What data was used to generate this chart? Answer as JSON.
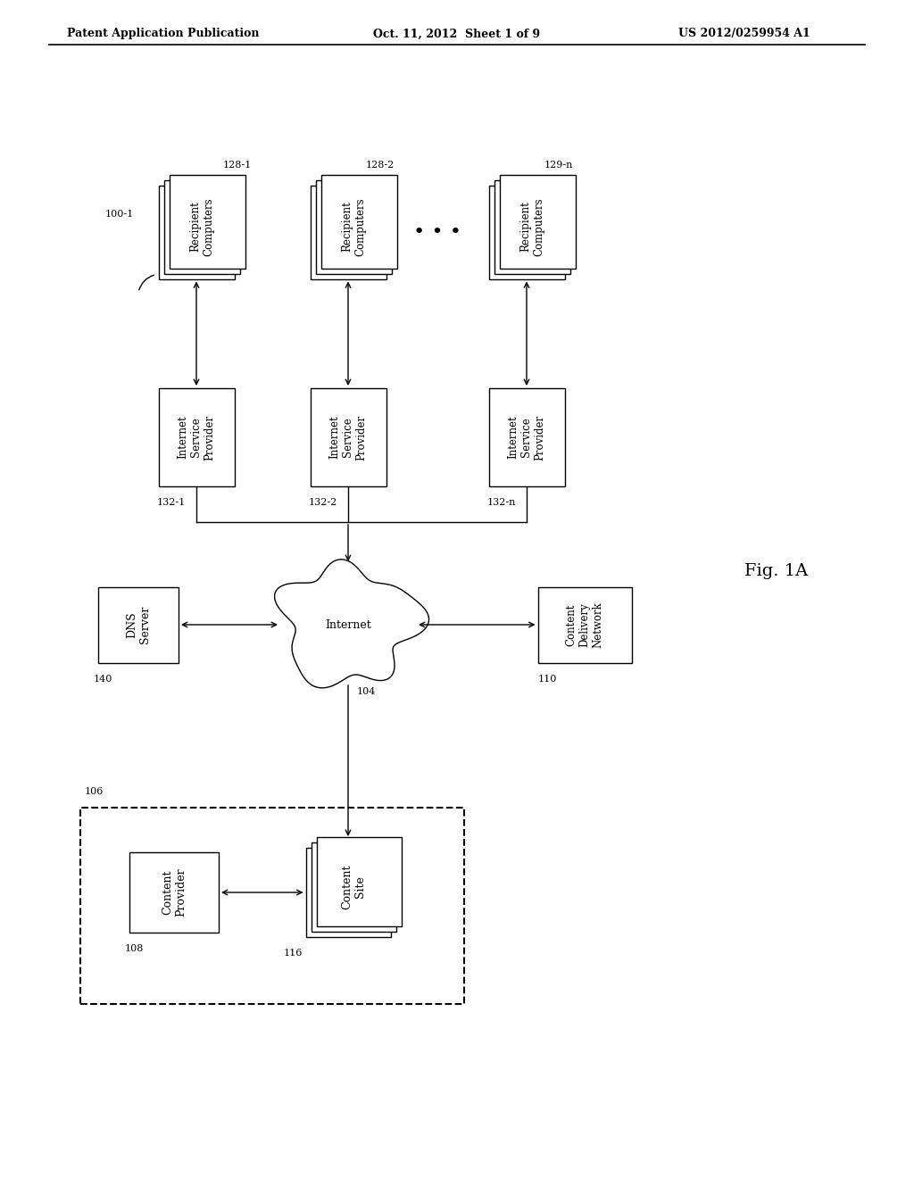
{
  "header_left": "Patent Application Publication",
  "header_mid": "Oct. 11, 2012  Sheet 1 of 9",
  "header_right": "US 2012/0259954 A1",
  "fig_label": "Fig. 1A",
  "bg": "#ffffff",
  "lc": "#000000",
  "tc": "#000000"
}
